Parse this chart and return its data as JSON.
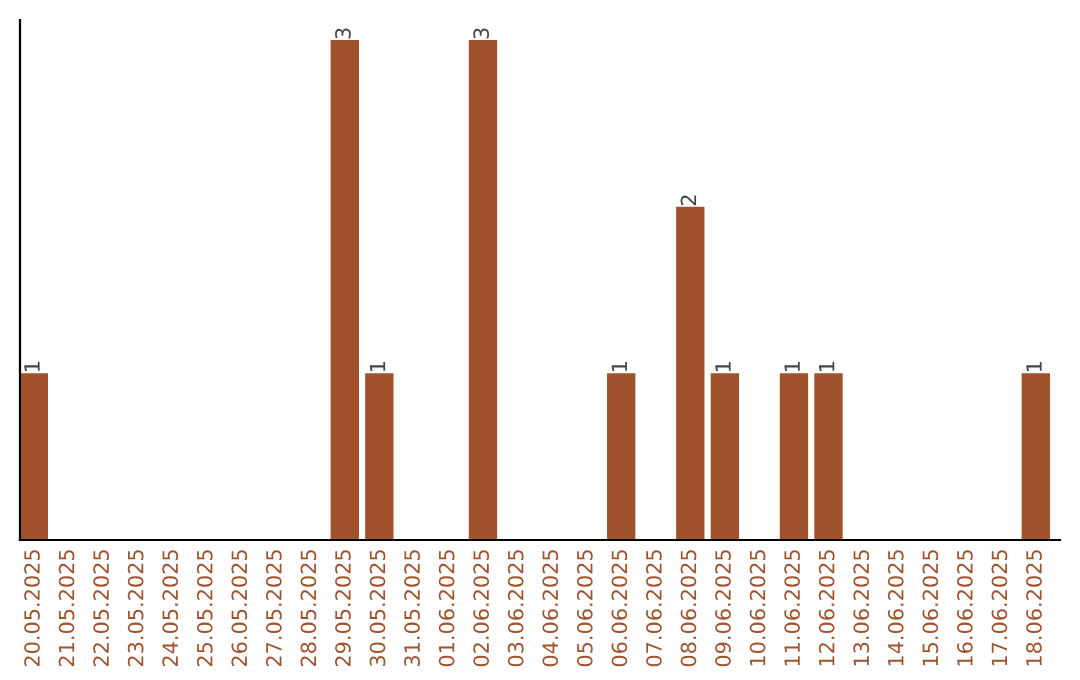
{
  "chart_data": {
    "type": "bar",
    "categories": [
      "20.05.2025",
      "21.05.2025",
      "22.05.2025",
      "23.05.2025",
      "24.05.2025",
      "25.05.2025",
      "26.05.2025",
      "27.05.2025",
      "28.05.2025",
      "29.05.2025",
      "30.05.2025",
      "31.05.2025",
      "01.06.2025",
      "02.06.2025",
      "03.06.2025",
      "04.06.2025",
      "05.06.2025",
      "06.06.2025",
      "07.06.2025",
      "08.06.2025",
      "09.06.2025",
      "10.06.2025",
      "11.06.2025",
      "12.06.2025",
      "13.06.2025",
      "14.06.2025",
      "15.06.2025",
      "16.06.2025",
      "17.06.2025",
      "18.06.2025"
    ],
    "values": [
      1,
      0,
      0,
      0,
      0,
      0,
      0,
      0,
      0,
      3,
      1,
      0,
      0,
      3,
      0,
      0,
      0,
      1,
      0,
      2,
      1,
      0,
      1,
      1,
      0,
      0,
      0,
      0,
      0,
      1
    ],
    "value_labels": [
      "1",
      null,
      null,
      null,
      null,
      null,
      null,
      null,
      null,
      "3",
      "1",
      null,
      null,
      "3",
      null,
      null,
      null,
      "1",
      null,
      "2",
      "1",
      null,
      "1",
      "1",
      null,
      null,
      null,
      null,
      null,
      "1"
    ],
    "color": "#a0522d",
    "grid": false,
    "legend": false
  }
}
